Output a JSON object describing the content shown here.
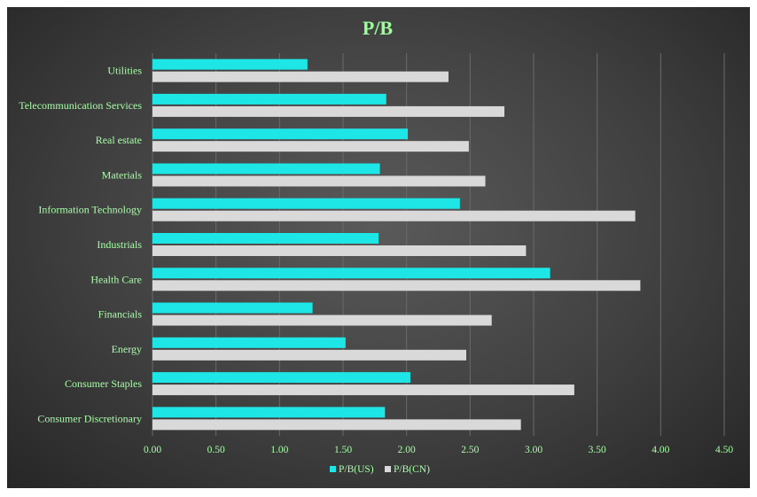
{
  "chart_data": {
    "type": "bar",
    "orientation": "horizontal",
    "title": "P/B",
    "categories": [
      "Consumer Discretionary",
      "Consumer Staples",
      "Energy",
      "Financials",
      "Health Care",
      "Industrials",
      "Information Technology",
      "Materials",
      "Real estate",
      "Telecommunication Services",
      "Utilities"
    ],
    "series": [
      {
        "name": "P/B(US)",
        "color": "#1fe6e6",
        "values": [
          1.83,
          2.03,
          1.52,
          1.26,
          3.13,
          1.78,
          2.42,
          1.79,
          2.01,
          1.84,
          1.22
        ]
      },
      {
        "name": "P/B(CN)",
        "color": "#d9d9d9",
        "values": [
          2.9,
          3.32,
          2.47,
          2.67,
          3.84,
          2.94,
          3.8,
          2.62,
          2.49,
          2.77,
          2.33
        ]
      }
    ],
    "xlim": [
      0,
      4.5
    ],
    "xticks": [
      "0.00",
      "0.50",
      "1.00",
      "1.50",
      "2.00",
      "2.50",
      "3.00",
      "3.50",
      "4.00",
      "4.50"
    ],
    "grid": true,
    "legend": "bottom"
  }
}
